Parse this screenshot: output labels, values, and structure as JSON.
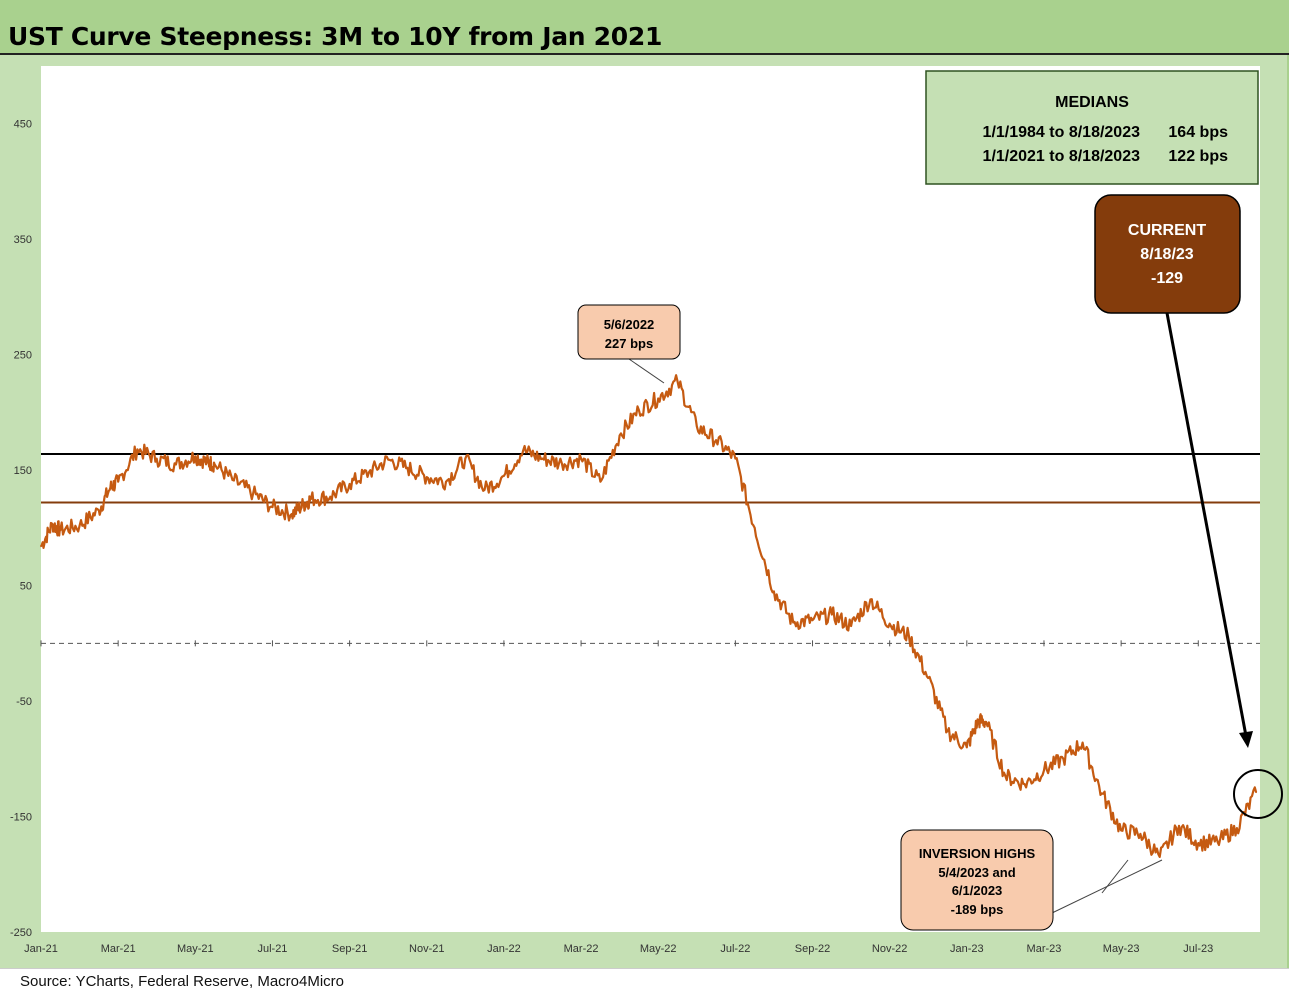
{
  "title": "UST Curve Steepness: 3M to 10Y from Jan 2021",
  "source": "Source: YCharts, Federal Reserve, Macro4Micro",
  "medians_box": {
    "heading": "MEDIANS",
    "rows": [
      {
        "period": "1/1/1984 to 8/18/2023",
        "value": "164 bps"
      },
      {
        "period": "1/1/2021 to 8/18/2023",
        "value": "122 bps"
      }
    ]
  },
  "current_box": {
    "line1": "CURRENT",
    "line2": "8/18/23",
    "line3": "-129"
  },
  "peak_box": {
    "line1": "5/6/2022",
    "line2": "227 bps"
  },
  "inversion_box": {
    "line1": "INVERSION HIGHS",
    "line2": "5/4/2023 and",
    "line3": "6/1/2023",
    "line4": "-189 bps"
  },
  "colors": {
    "series": "#c55a11",
    "median_1984": "#000000",
    "median_2021": "#843c0c",
    "current_box": "#843c0c",
    "annotation_box": "#f8cbad",
    "medians_box": "#c5e0b4"
  },
  "chart_data": {
    "type": "line",
    "title": "UST Curve Steepness: 3M to 10Y from Jan 2021",
    "xlabel": "",
    "ylabel": "",
    "ylim": [
      -250,
      500
    ],
    "yticks": [
      450,
      350,
      250,
      150,
      50,
      -50,
      -150,
      -250
    ],
    "x_ticks": [
      "Jan-21",
      "Mar-21",
      "May-21",
      "Jul-21",
      "Sep-21",
      "Nov-21",
      "Jan-22",
      "Mar-22",
      "May-22",
      "Jul-22",
      "Sep-22",
      "Nov-22",
      "Jan-23",
      "Mar-23",
      "May-23",
      "Jul-23"
    ],
    "x_range": [
      0,
      31.6
    ],
    "grid": false,
    "reference_lines": [
      {
        "name": "1/1/1984 to 8/18/2023 median",
        "value": 164
      },
      {
        "name": "1/1/2021 to 8/18/2023 median",
        "value": 122
      },
      {
        "name": "zero",
        "value": 0
      }
    ],
    "x": [
      0,
      0.3,
      0.5,
      1.0,
      1.5,
      1.8,
      2.0,
      2.5,
      3.0,
      3.5,
      4.0,
      4.3,
      4.5,
      5.0,
      5.5,
      6.0,
      6.5,
      6.8,
      7.0,
      7.5,
      8.0,
      8.5,
      9.0,
      9.5,
      10.0,
      10.5,
      11.0,
      11.5,
      12.0,
      12.5,
      13.0,
      13.5,
      14.0,
      14.5,
      15.0,
      15.5,
      16.0,
      16.5,
      17.0,
      17.5,
      18.0,
      18.5,
      19.0,
      19.5,
      20.0,
      20.5,
      21.0,
      21.5,
      22.0,
      22.5,
      23.0,
      23.5,
      24.0,
      24.3,
      24.5,
      25.0,
      25.5,
      26.0,
      26.5,
      27.0,
      27.5,
      28.0,
      28.5,
      29.0,
      29.5,
      30.0,
      30.5,
      31.0,
      31.5
    ],
    "y": [
      84,
      103,
      98,
      102,
      115,
      135,
      140,
      168,
      160,
      155,
      162,
      157,
      155,
      141,
      130,
      118,
      112,
      120,
      125,
      127,
      138,
      148,
      159,
      152,
      144,
      140,
      160,
      133,
      145,
      167,
      160,
      156,
      160,
      140,
      180,
      202,
      212,
      227,
      188,
      176,
      160,
      100,
      45,
      18,
      20,
      25,
      15,
      38,
      17,
      6,
      -30,
      -76,
      -90,
      -67,
      -68,
      -115,
      -122,
      -110,
      -100,
      -86,
      -130,
      -162,
      -165,
      -185,
      -158,
      -173,
      -172,
      -160,
      -129
    ],
    "annotations": [
      {
        "label": "5/6/2022 227 bps",
        "x": 16.2,
        "y": 227
      },
      {
        "label": "INVERSION HIGHS 5/4/2023 and 6/1/2023 -189 bps",
        "x": 28.0,
        "y": -189
      },
      {
        "label": "CURRENT 8/18/23 -129",
        "x": 31.5,
        "y": -129
      }
    ]
  }
}
